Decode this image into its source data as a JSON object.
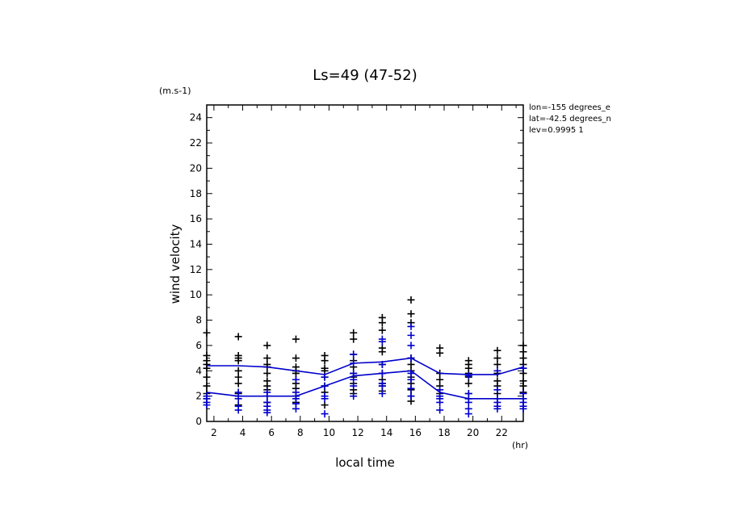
{
  "chart_data": {
    "type": "scatter",
    "title": "Ls=49 (47-52)",
    "xlabel": "local time",
    "ylabel": "wind velocity",
    "x_unit": "(hr)",
    "y_unit": "(m.s-1)",
    "xlim": [
      1.5,
      23.5
    ],
    "ylim": [
      0,
      25
    ],
    "xticks": [
      2,
      4,
      6,
      8,
      10,
      12,
      14,
      16,
      18,
      20,
      22
    ],
    "yticks": [
      0,
      2,
      4,
      6,
      8,
      10,
      12,
      14,
      16,
      18,
      20,
      22,
      24
    ],
    "annotations": [
      "lon=-155 degrees_e",
      "lat=-42.5 degrees_n",
      "lev=0.9995 1"
    ],
    "colors": {
      "black_series": "#000000",
      "blue_series": "#0000cc",
      "lines": "#0000cc"
    },
    "series": [
      {
        "color": "black",
        "marker": "+",
        "points": [
          {
            "x": 1.5,
            "y": [
              7.0,
              5.2,
              4.8,
              4.5,
              4.2,
              3.5,
              2.8,
              2.2,
              1.8
            ]
          },
          {
            "x": 3.7,
            "y": [
              6.7,
              5.2,
              5.0,
              4.8,
              4.0,
              3.5,
              3.0,
              2.2,
              1.3
            ]
          },
          {
            "x": 5.7,
            "y": [
              6.0,
              5.0,
              4.5,
              4.3,
              3.8,
              3.2,
              2.8,
              2.5,
              2.0,
              1.5
            ]
          },
          {
            "x": 7.7,
            "y": [
              6.5,
              5.0,
              4.3,
              4.0,
              3.8,
              3.3,
              3.0,
              2.6,
              2.0,
              1.5
            ]
          },
          {
            "x": 9.7,
            "y": [
              5.2,
              4.8,
              4.2,
              4.0,
              3.5,
              2.8,
              2.3,
              1.3
            ]
          },
          {
            "x": 11.7,
            "y": [
              7.0,
              6.5,
              5.3,
              4.8,
              4.3,
              3.8,
              3.5,
              3.0,
              2.5,
              2.2
            ]
          },
          {
            "x": 13.7,
            "y": [
              8.2,
              7.8,
              7.2,
              5.8,
              5.5,
              4.5,
              3.8,
              3.3,
              3.0,
              2.8,
              2.4
            ]
          },
          {
            "x": 15.7,
            "y": [
              9.6,
              8.5,
              7.8,
              5.0,
              4.5,
              4.0,
              3.5,
              3.0,
              2.5,
              2.0,
              1.6
            ]
          },
          {
            "x": 17.7,
            "y": [
              5.8,
              5.4,
              3.8,
              3.3,
              2.8,
              2.2
            ]
          },
          {
            "x": 19.7,
            "y": [
              4.8,
              4.5,
              4.2,
              3.8,
              3.5,
              3.0,
              2.2,
              1.8
            ]
          },
          {
            "x": 21.7,
            "y": [
              5.6,
              5.0,
              4.5,
              3.8,
              3.2,
              2.8,
              2.2
            ]
          },
          {
            "x": 23.5,
            "y": [
              6.0,
              5.5,
              5.0,
              4.5,
              4.2,
              3.8,
              3.2,
              2.8,
              2.3
            ]
          }
        ]
      },
      {
        "color": "blue",
        "marker": "+",
        "points": [
          {
            "x": 1.5,
            "y": [
              2.0,
              1.8,
              1.5,
              1.3
            ]
          },
          {
            "x": 3.7,
            "y": [
              2.3,
              2.0,
              1.8,
              1.2,
              0.9
            ]
          },
          {
            "x": 5.7,
            "y": [
              2.3,
              2.0,
              1.5,
              1.2,
              0.9,
              0.7
            ]
          },
          {
            "x": 7.7,
            "y": [
              3.3,
              2.3,
              2.0,
              1.8,
              1.4,
              1.0
            ]
          },
          {
            "x": 9.7,
            "y": [
              3.5,
              2.8,
              2.0,
              1.8,
              0.6
            ]
          },
          {
            "x": 11.7,
            "y": [
              5.3,
              4.6,
              3.8,
              3.3,
              2.8,
              2.0
            ]
          },
          {
            "x": 13.7,
            "y": [
              6.5,
              6.3,
              4.5,
              3.8,
              3.0,
              2.8,
              2.2
            ]
          },
          {
            "x": 15.7,
            "y": [
              7.5,
              6.8,
              6.0,
              5.0,
              3.8,
              3.3,
              2.6,
              2.0
            ]
          },
          {
            "x": 17.7,
            "y": [
              2.5,
              2.0,
              1.8,
              1.5,
              0.9
            ]
          },
          {
            "x": 19.7,
            "y": [
              3.6,
              2.2,
              1.8,
              1.5,
              1.0,
              0.6
            ]
          },
          {
            "x": 21.7,
            "y": [
              4.0,
              2.5,
              1.8,
              1.5,
              1.2,
              1.0
            ]
          },
          {
            "x": 23.5,
            "y": [
              4.2,
              2.2,
              1.8,
              1.5,
              1.2,
              1.0
            ]
          }
        ]
      }
    ],
    "lines": [
      {
        "color": "blue",
        "x": [
          1.5,
          3.7,
          5.7,
          7.7,
          9.7,
          11.7,
          13.7,
          15.7,
          17.7,
          19.7,
          21.7,
          23.5
        ],
        "y": [
          4.4,
          4.4,
          4.3,
          4.0,
          3.7,
          4.6,
          4.7,
          5.0,
          3.8,
          3.7,
          3.7,
          4.3
        ]
      },
      {
        "color": "blue",
        "x": [
          1.5,
          3.7,
          5.7,
          7.7,
          9.7,
          11.7,
          13.7,
          15.7,
          17.7,
          19.7,
          21.7,
          23.5
        ],
        "y": [
          2.3,
          2.0,
          2.0,
          2.0,
          2.8,
          3.6,
          3.8,
          4.0,
          2.3,
          1.8,
          1.8,
          1.8
        ]
      }
    ]
  }
}
